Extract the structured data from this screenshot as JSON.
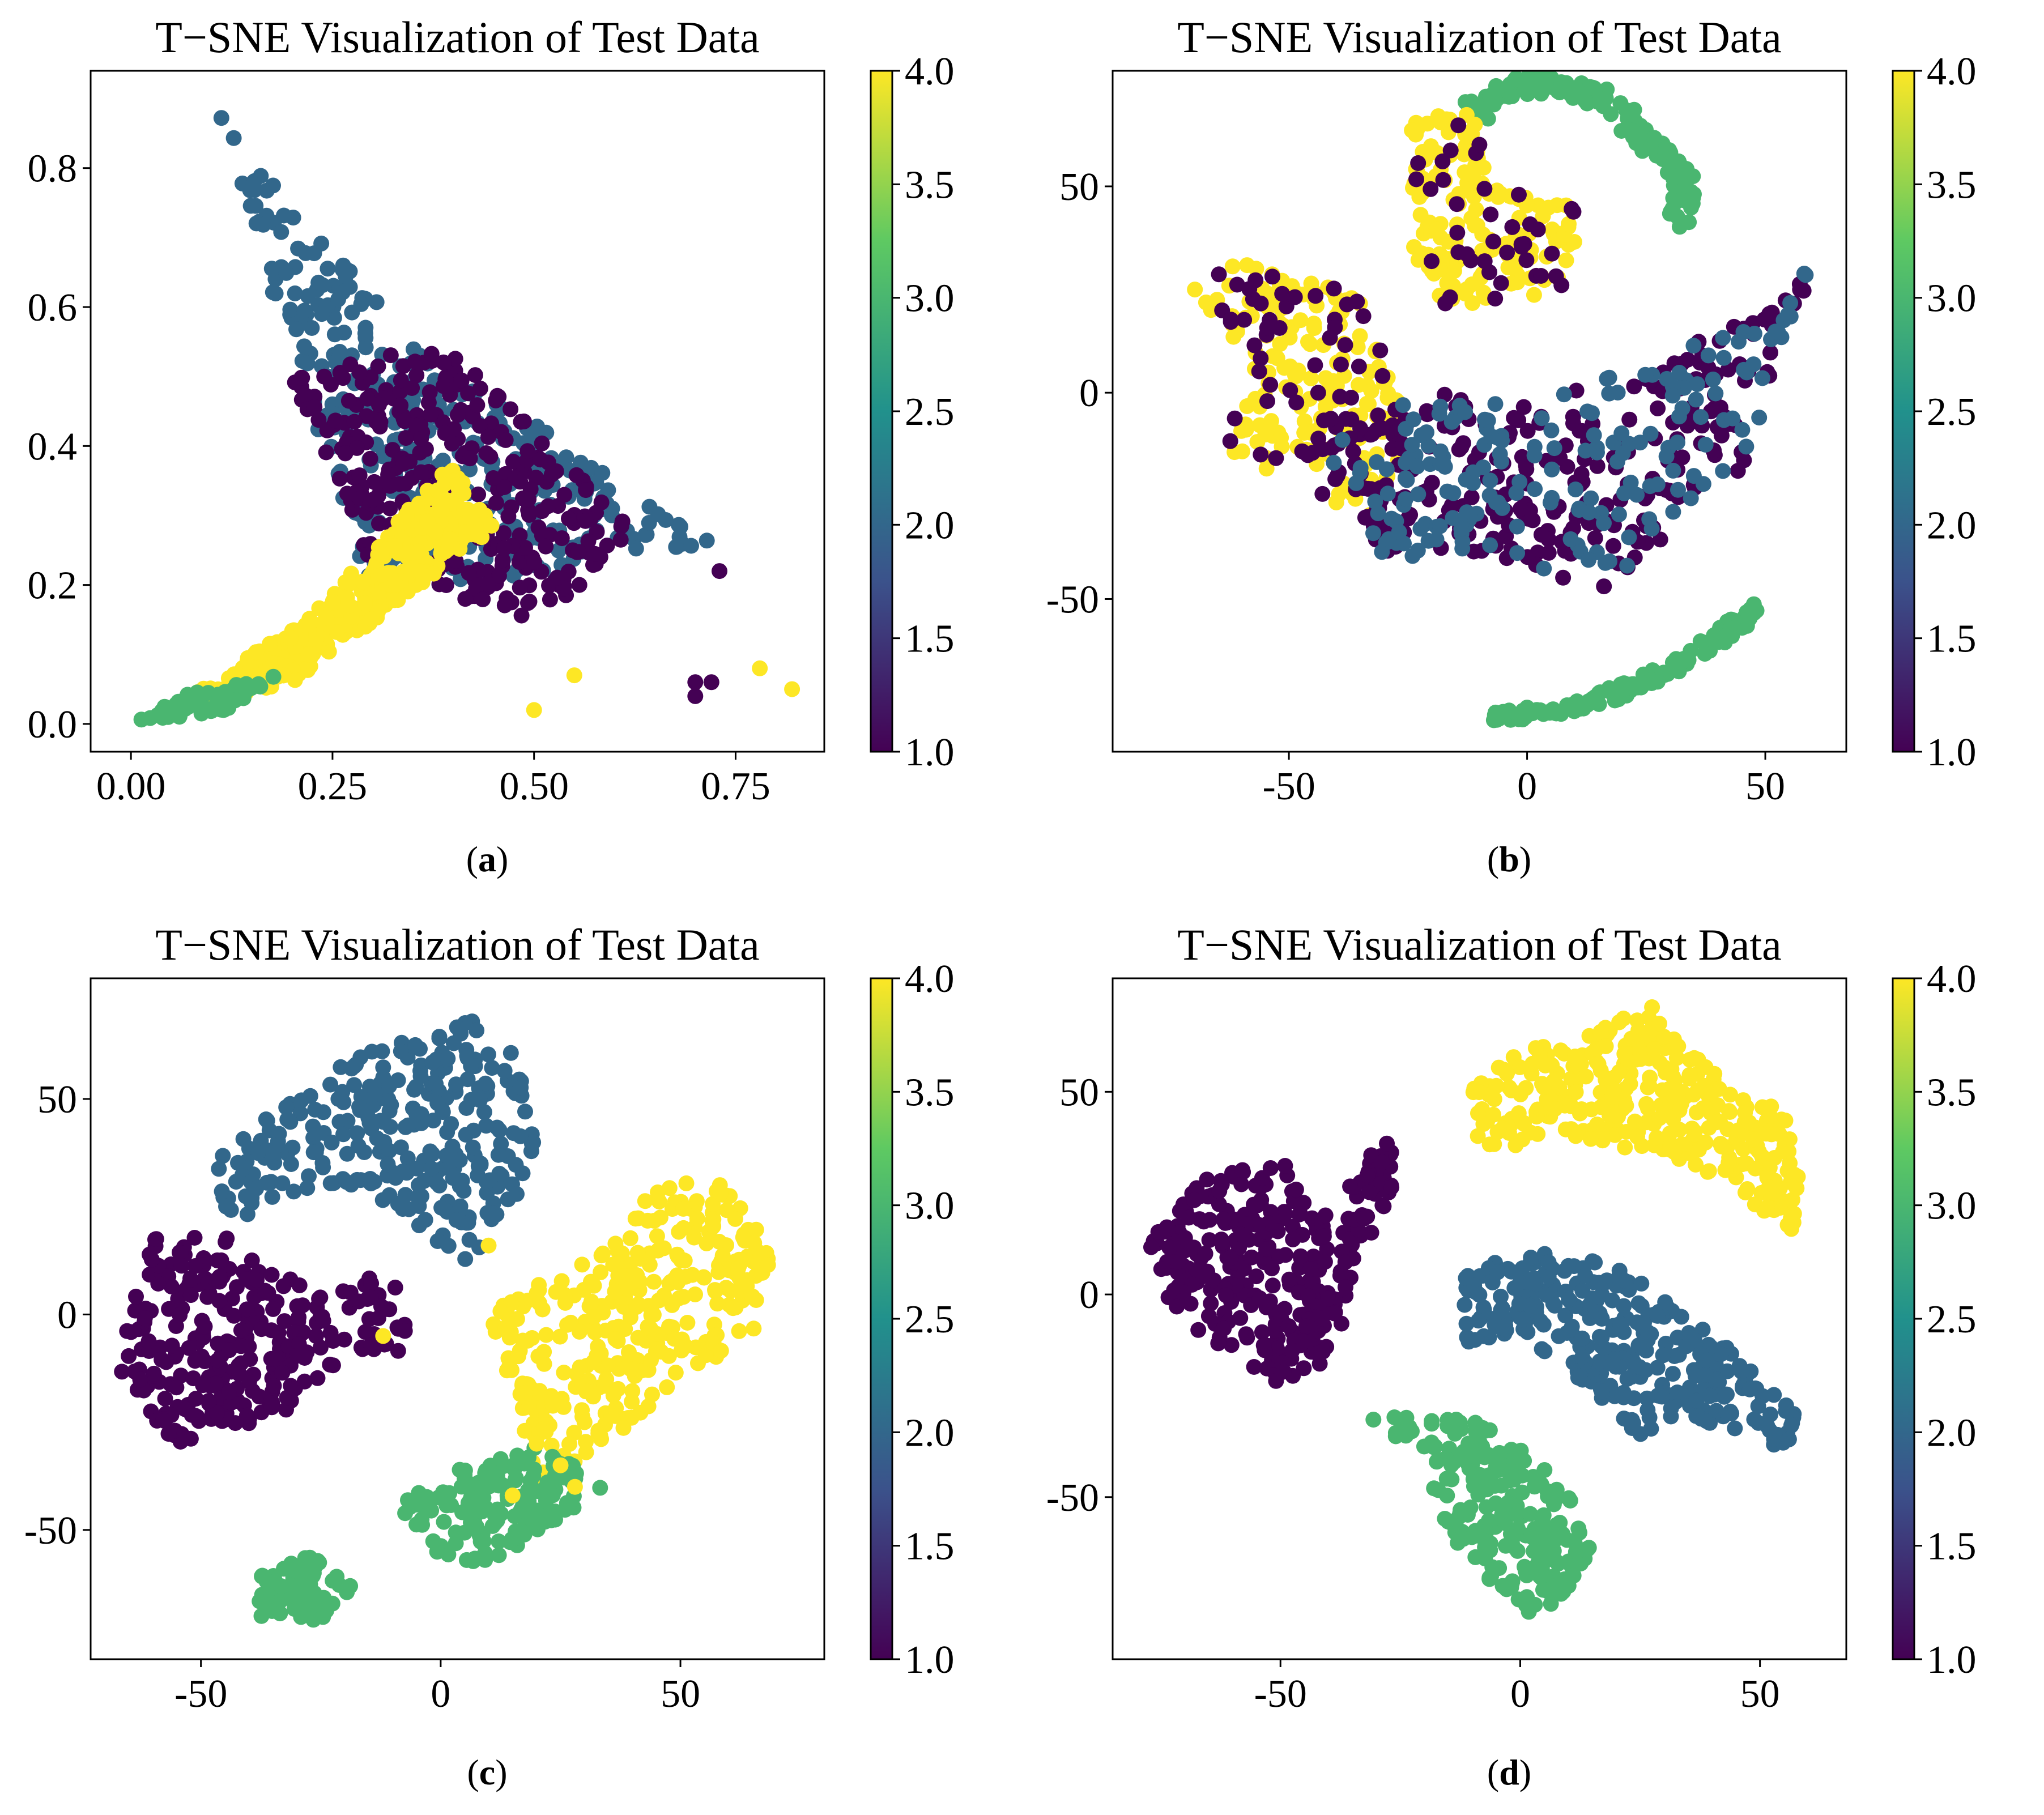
{
  "figure": {
    "colors": {
      "viridis": [
        "#440154",
        "#3b528b",
        "#21918c",
        "#5ec962",
        "#fde725"
      ]
    }
  },
  "chart_data": [
    {
      "id": "a",
      "type": "scatter",
      "title": "T−SNE Visualization of Test Data",
      "caption": "(a)",
      "caption_letter": "a",
      "xlim": [
        -0.05,
        0.86
      ],
      "ylim": [
        -0.04,
        0.94
      ],
      "xticks": [
        "0.00",
        "0.25",
        "0.50",
        "0.75"
      ],
      "xtick_values": [
        0,
        0.25,
        0.5,
        0.75
      ],
      "yticks": [
        "0.0",
        "0.2",
        "0.4",
        "0.6",
        "0.8"
      ],
      "ytick_values": [
        0,
        0.2,
        0.4,
        0.6,
        0.8
      ],
      "colorbar": {
        "range": [
          1.0,
          4.0
        ],
        "ticks": [
          "1.0",
          "1.5",
          "2.0",
          "2.5",
          "3.0",
          "3.5",
          "4.0"
        ],
        "tick_values": [
          1,
          1.5,
          2,
          2.5,
          3,
          3.5,
          4
        ]
      },
      "clusters": [
        {
          "label": 2.0,
          "shape": "triangle",
          "verts": [
            [
              0.1,
              0.89
            ],
            [
              0.35,
              0.55
            ],
            [
              0.72,
              0.26
            ],
            [
              0.3,
              0.18
            ]
          ],
          "n": 380
        },
        {
          "label": 1.0,
          "shape": "poly",
          "verts": [
            [
              0.2,
              0.5
            ],
            [
              0.38,
              0.55
            ],
            [
              0.65,
              0.28
            ],
            [
              0.5,
              0.15
            ],
            [
              0.3,
              0.22
            ]
          ],
          "n": 320
        },
        {
          "label": 4.0,
          "shape": "poly",
          "verts": [
            [
              0.05,
              0.02
            ],
            [
              0.2,
              0.06
            ],
            [
              0.45,
              0.28
            ],
            [
              0.4,
              0.38
            ],
            [
              0.22,
              0.15
            ],
            [
              0.08,
              0.05
            ]
          ],
          "n": 360
        },
        {
          "label": 3.0,
          "shape": "poly",
          "verts": [
            [
              0.0,
              0.0
            ],
            [
              0.12,
              0.02
            ],
            [
              0.18,
              0.07
            ],
            [
              0.06,
              0.04
            ]
          ],
          "n": 60
        },
        {
          "label": 4.0,
          "shape": "points",
          "pts": [
            [
              0.78,
              0.08
            ],
            [
              0.82,
              0.05
            ],
            [
              0.5,
              0.02
            ],
            [
              0.55,
              0.07
            ]
          ]
        },
        {
          "label": 1.0,
          "shape": "points",
          "pts": [
            [
              0.7,
              0.04
            ],
            [
              0.72,
              0.06
            ],
            [
              0.7,
              0.06
            ],
            [
              0.73,
              0.22
            ]
          ]
        }
      ]
    },
    {
      "id": "b",
      "type": "scatter",
      "title": "T−SNE Visualization of Test Data",
      "caption": "(b)",
      "caption_letter": "b",
      "xlim": [
        -87,
        67
      ],
      "ylim": [
        -87,
        78
      ],
      "xticks": [
        "-50",
        "0",
        "50"
      ],
      "xtick_values": [
        -50,
        0,
        50
      ],
      "yticks": [
        "-50",
        "0",
        "50"
      ],
      "ytick_values": [
        -50,
        0,
        50
      ],
      "colorbar": {
        "range": [
          1.0,
          4.0
        ],
        "ticks": [
          "1.0",
          "1.5",
          "2.0",
          "2.5",
          "3.0",
          "3.5",
          "4.0"
        ],
        "tick_values": [
          1,
          1.5,
          2,
          2.5,
          3,
          3.5,
          4
        ]
      },
      "clusters": [
        {
          "label": 3.0,
          "shape": "path",
          "pts": [
            [
              -12,
              68
            ],
            [
              0,
              75
            ],
            [
              15,
              72
            ],
            [
              28,
              58
            ],
            [
              33,
              52
            ],
            [
              32,
              42
            ]
          ],
          "width": 5,
          "n": 150
        },
        {
          "label": 4.0,
          "shape": "poly",
          "verts": [
            [
              -25,
              65
            ],
            [
              -10,
              70
            ],
            [
              -8,
              50
            ],
            [
              10,
              45
            ],
            [
              10,
              25
            ],
            [
              -20,
              20
            ],
            [
              -25,
              40
            ]
          ],
          "n": 160
        },
        {
          "label": 1.0,
          "shape": "poly",
          "verts": [
            [
              -25,
              65
            ],
            [
              -10,
              70
            ],
            [
              -8,
              50
            ],
            [
              10,
              45
            ],
            [
              10,
              25
            ],
            [
              -20,
              20
            ],
            [
              -25,
              40
            ]
          ],
          "n": 40
        },
        {
          "label": 4.0,
          "shape": "poly",
          "verts": [
            [
              -70,
              25
            ],
            [
              -60,
              32
            ],
            [
              -35,
              25
            ],
            [
              -30,
              10
            ],
            [
              -25,
              -5
            ],
            [
              -30,
              -35
            ],
            [
              -50,
              -20
            ],
            [
              -65,
              -15
            ],
            [
              -58,
              5
            ]
          ],
          "n": 170
        },
        {
          "label": 1.0,
          "shape": "poly",
          "verts": [
            [
              -70,
              25
            ],
            [
              -60,
              32
            ],
            [
              -35,
              25
            ],
            [
              -30,
              10
            ],
            [
              -25,
              -5
            ],
            [
              -30,
              -35
            ],
            [
              -50,
              -20
            ],
            [
              -65,
              -15
            ],
            [
              -58,
              5
            ]
          ],
          "n": 70
        },
        {
          "label": 1.0,
          "shape": "poly",
          "verts": [
            [
              -45,
              -10
            ],
            [
              -20,
              0
            ],
            [
              0,
              -3
            ],
            [
              20,
              5
            ],
            [
              40,
              15
            ],
            [
              55,
              25
            ],
            [
              62,
              37
            ],
            [
              55,
              15
            ],
            [
              45,
              -20
            ],
            [
              15,
              -48
            ],
            [
              -10,
              -40
            ],
            [
              -30,
              -40
            ]
          ],
          "n": 260
        },
        {
          "label": 2.0,
          "shape": "poly",
          "verts": [
            [
              -45,
              -10
            ],
            [
              -20,
              0
            ],
            [
              0,
              -3
            ],
            [
              20,
              5
            ],
            [
              40,
              15
            ],
            [
              55,
              25
            ],
            [
              62,
              37
            ],
            [
              55,
              15
            ],
            [
              45,
              -20
            ],
            [
              15,
              -48
            ],
            [
              -10,
              -40
            ],
            [
              -30,
              -40
            ]
          ],
          "n": 200
        },
        {
          "label": 3.0,
          "shape": "path",
          "pts": [
            [
              -8,
              -79
            ],
            [
              10,
              -76
            ],
            [
              25,
              -70
            ],
            [
              40,
              -60
            ],
            [
              48,
              -52
            ]
          ],
          "width": 3,
          "n": 160
        }
      ]
    },
    {
      "id": "c",
      "type": "scatter",
      "title": "T−SNE Visualization of Test Data",
      "caption": "(c)",
      "caption_letter": "c",
      "xlim": [
        -73,
        80
      ],
      "ylim": [
        -80,
        78
      ],
      "xticks": [
        "-50",
        "0",
        "50"
      ],
      "xtick_values": [
        -50,
        0,
        50
      ],
      "yticks": [
        "-50",
        "0",
        "50"
      ],
      "ytick_values": [
        -50,
        0,
        50
      ],
      "colorbar": {
        "range": [
          1.0,
          4.0
        ],
        "ticks": [
          "1.0",
          "1.5",
          "2.0",
          "2.5",
          "3.0",
          "3.5",
          "4.0"
        ],
        "tick_values": [
          1,
          1.5,
          2,
          2.5,
          3,
          3.5,
          4
        ]
      },
      "clusters": [
        {
          "label": 2.0,
          "shape": "poly",
          "verts": [
            [
              -45,
              40
            ],
            [
              -30,
              50
            ],
            [
              -20,
              60
            ],
            [
              -5,
              65
            ],
            [
              5,
              70
            ],
            [
              15,
              62
            ],
            [
              20,
              40
            ],
            [
              15,
              20
            ],
            [
              5,
              12
            ],
            [
              -10,
              25
            ],
            [
              -30,
              28
            ],
            [
              -45,
              20
            ],
            [
              -48,
              32
            ]
          ],
          "n": 300
        },
        {
          "label": 1.0,
          "shape": "poly",
          "verts": [
            [
              -65,
              0
            ],
            [
              -60,
              18
            ],
            [
              -45,
              18
            ],
            [
              -35,
              10
            ],
            [
              -25,
              5
            ],
            [
              -10,
              10
            ],
            [
              -5,
              -8
            ],
            [
              -20,
              -10
            ],
            [
              -35,
              -25
            ],
            [
              -55,
              -30
            ],
            [
              -67,
              -15
            ]
          ],
          "n": 280
        },
        {
          "label": 4.0,
          "shape": "poly",
          "verts": [
            [
              10,
              0
            ],
            [
              25,
              10
            ],
            [
              35,
              15
            ],
            [
              45,
              30
            ],
            [
              55,
              35
            ],
            [
              70,
              15
            ],
            [
              65,
              -5
            ],
            [
              50,
              -15
            ],
            [
              35,
              -30
            ],
            [
              20,
              -40
            ],
            [
              15,
              -20
            ]
          ],
          "n": 340
        },
        {
          "label": 3.0,
          "shape": "poly",
          "verts": [
            [
              -10,
              -45
            ],
            [
              5,
              -35
            ],
            [
              20,
              -30
            ],
            [
              35,
              -40
            ],
            [
              28,
              -45
            ],
            [
              10,
              -58
            ],
            [
              -5,
              -55
            ]
          ],
          "n": 150
        },
        {
          "label": 3.0,
          "shape": "poly",
          "verts": [
            [
              -40,
              -62
            ],
            [
              -28,
              -55
            ],
            [
              -18,
              -63
            ],
            [
              -25,
              -72
            ],
            [
              -38,
              -70
            ]
          ],
          "n": 70
        },
        {
          "label": 4.0,
          "shape": "points",
          "pts": [
            [
              -12,
              -5
            ],
            [
              10,
              16
            ],
            [
              20,
              -30
            ],
            [
              25,
              -35
            ],
            [
              30,
              -25
            ],
            [
              28,
              -40
            ],
            [
              15,
              -42
            ]
          ]
        }
      ]
    },
    {
      "id": "d",
      "type": "scatter",
      "title": "T−SNE Visualization of Test Data",
      "caption": "(d)",
      "caption_letter": "d",
      "xlim": [
        -85,
        68
      ],
      "ylim": [
        -90,
        78
      ],
      "xticks": [
        "-50",
        "0",
        "50"
      ],
      "xtick_values": [
        -50,
        0,
        50
      ],
      "yticks": [
        "-50",
        "0",
        "50"
      ],
      "ytick_values": [
        -50,
        0,
        50
      ],
      "colorbar": {
        "range": [
          1.0,
          4.0
        ],
        "ticks": [
          "1.0",
          "1.5",
          "2.0",
          "2.5",
          "3.0",
          "3.5",
          "4.0"
        ],
        "tick_values": [
          1,
          1.5,
          2,
          2.5,
          3,
          3.5,
          4
        ]
      },
      "clusters": [
        {
          "label": 4.0,
          "shape": "poly",
          "verts": [
            [
              -12,
              50
            ],
            [
              0,
              60
            ],
            [
              15,
              65
            ],
            [
              28,
              72
            ],
            [
              35,
              60
            ],
            [
              45,
              52
            ],
            [
              55,
              45
            ],
            [
              58,
              35
            ],
            [
              58,
              15
            ],
            [
              45,
              25
            ],
            [
              30,
              35
            ],
            [
              10,
              38
            ],
            [
              -8,
              35
            ]
          ],
          "n": 340
        },
        {
          "label": 1.0,
          "shape": "poly",
          "verts": [
            [
              -78,
              12
            ],
            [
              -65,
              30
            ],
            [
              -48,
              32
            ],
            [
              -40,
              20
            ],
            [
              -28,
              40
            ],
            [
              -25,
              30
            ],
            [
              -35,
              5
            ],
            [
              -38,
              -15
            ],
            [
              -50,
              -22
            ],
            [
              -60,
              -15
            ],
            [
              -72,
              -5
            ]
          ],
          "n": 320
        },
        {
          "label": 2.0,
          "shape": "poly",
          "verts": [
            [
              -12,
              5
            ],
            [
              0,
              10
            ],
            [
              15,
              10
            ],
            [
              30,
              0
            ],
            [
              45,
              -15
            ],
            [
              60,
              -30
            ],
            [
              55,
              -38
            ],
            [
              35,
              -30
            ],
            [
              25,
              -35
            ],
            [
              10,
              -20
            ],
            [
              -5,
              -10
            ],
            [
              -12,
              -15
            ]
          ],
          "n": 330
        },
        {
          "label": 3.0,
          "shape": "poly",
          "verts": [
            [
              -32,
              -30
            ],
            [
              -20,
              -40
            ],
            [
              -15,
              -60
            ],
            [
              -5,
              -75
            ],
            [
              5,
              -80
            ],
            [
              15,
              -65
            ],
            [
              12,
              -50
            ],
            [
              0,
              -38
            ],
            [
              -8,
              -30
            ],
            [
              -20,
              -30
            ]
          ],
          "n": 220
        }
      ]
    }
  ]
}
